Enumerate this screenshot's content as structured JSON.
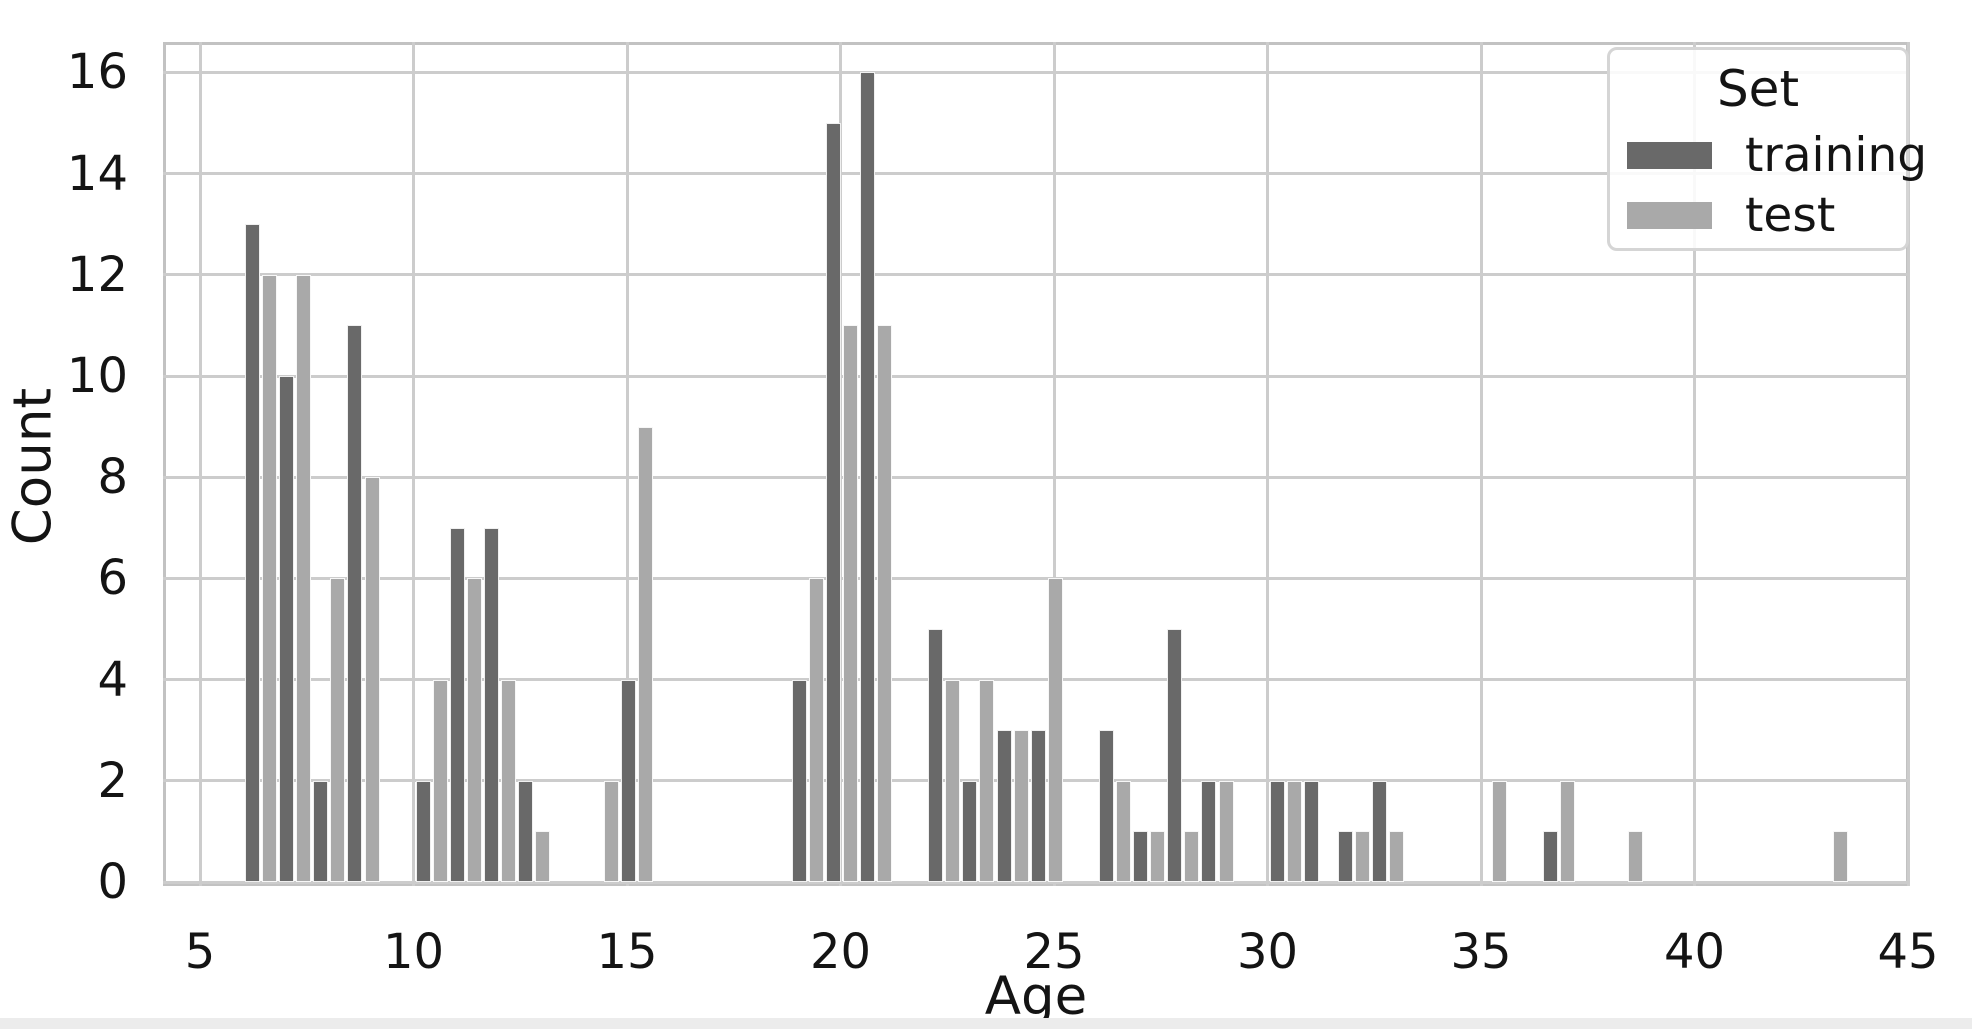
{
  "chart_data": {
    "type": "bar",
    "subtype": "grouped-histogram-dodge",
    "title": "",
    "xlabel": "Age",
    "ylabel": "Count",
    "x_ticks": [
      5,
      10,
      15,
      20,
      25,
      30,
      35,
      40,
      45
    ],
    "y_ticks": [
      0,
      2,
      4,
      6,
      8,
      10,
      12,
      14,
      16
    ],
    "xlim": [
      4.13,
      45.05
    ],
    "ylim": [
      0,
      16.6
    ],
    "grid": true,
    "bin_width": 0.8,
    "legend": {
      "title": "Set",
      "position": "upper-right",
      "entries": [
        {
          "label": "training",
          "color": "#696969"
        },
        {
          "label": "test",
          "color": "#a9a9a9"
        }
      ]
    },
    "series": [
      {
        "name": "training",
        "color": "#696969"
      },
      {
        "name": "test",
        "color": "#a9a9a9"
      }
    ],
    "bins": [
      {
        "start": 6.03,
        "training": 13,
        "test": 12
      },
      {
        "start": 6.83,
        "training": 10,
        "test": 12
      },
      {
        "start": 7.63,
        "training": 2,
        "test": 6
      },
      {
        "start": 8.43,
        "training": 11,
        "test": 8
      },
      {
        "start": 10.03,
        "training": 2,
        "test": 4
      },
      {
        "start": 10.83,
        "training": 7,
        "test": 6
      },
      {
        "start": 11.63,
        "training": 7,
        "test": 4
      },
      {
        "start": 12.43,
        "training": 2,
        "test": 1
      },
      {
        "start": 14.03,
        "training": 0,
        "test": 2
      },
      {
        "start": 14.83,
        "training": 4,
        "test": 9
      },
      {
        "start": 18.83,
        "training": 4,
        "test": 6
      },
      {
        "start": 19.63,
        "training": 15,
        "test": 11
      },
      {
        "start": 20.43,
        "training": 16,
        "test": 11
      },
      {
        "start": 22.03,
        "training": 5,
        "test": 4
      },
      {
        "start": 22.83,
        "training": 2,
        "test": 4
      },
      {
        "start": 23.63,
        "training": 3,
        "test": 3
      },
      {
        "start": 24.43,
        "training": 3,
        "test": 6
      },
      {
        "start": 26.03,
        "training": 3,
        "test": 2
      },
      {
        "start": 26.83,
        "training": 1,
        "test": 1
      },
      {
        "start": 27.63,
        "training": 5,
        "test": 1
      },
      {
        "start": 28.43,
        "training": 2,
        "test": 2
      },
      {
        "start": 30.03,
        "training": 2,
        "test": 2
      },
      {
        "start": 30.83,
        "training": 2,
        "test": 0
      },
      {
        "start": 31.63,
        "training": 1,
        "test": 1
      },
      {
        "start": 32.43,
        "training": 2,
        "test": 1
      },
      {
        "start": 34.83,
        "training": 0,
        "test": 2
      },
      {
        "start": 36.43,
        "training": 1,
        "test": 2
      },
      {
        "start": 38.03,
        "training": 0,
        "test": 1
      },
      {
        "start": 42.83,
        "training": 0,
        "test": 1
      }
    ]
  }
}
